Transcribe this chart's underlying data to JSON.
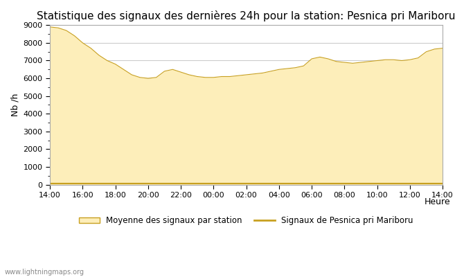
{
  "title": "Statistique des signaux des dernières 24h pour la station: Pesnica pri Mariboru",
  "xlabel": "Heure",
  "ylabel": "Nb /h",
  "ylim": [
    0,
    9000
  ],
  "yticks": [
    0,
    1000,
    2000,
    3000,
    4000,
    5000,
    6000,
    7000,
    8000,
    9000
  ],
  "xtick_labels": [
    "14:00",
    "16:00",
    "18:00",
    "20:00",
    "22:00",
    "00:00",
    "02:00",
    "04:00",
    "06:00",
    "08:00",
    "10:00",
    "12:00",
    "14:00"
  ],
  "fill_color": "#FDEEBA",
  "fill_edge_color": "#C8A020",
  "line_color": "#C8A020",
  "background_color": "#FFFFFF",
  "grid_color": "#CCCCCC",
  "watermark": "www.lightningmaps.org",
  "legend_fill_label": "Moyenne des signaux par station",
  "legend_line_label": "Signaux de Pesnica pri Mariboru",
  "title_fontsize": 11,
  "x_values": [
    0,
    1,
    2,
    3,
    4,
    5,
    6,
    7,
    8,
    9,
    10,
    11,
    12,
    13,
    14,
    15,
    16,
    17,
    18,
    19,
    20,
    21,
    22,
    23,
    24,
    25,
    26,
    27,
    28,
    29,
    30,
    31,
    32,
    33,
    34,
    35,
    36,
    37,
    38,
    39,
    40,
    41,
    42,
    43,
    44,
    45,
    46,
    47,
    48
  ],
  "y_fill": [
    8900,
    8850,
    8700,
    8400,
    8000,
    7700,
    7300,
    7000,
    6800,
    6500,
    6200,
    6050,
    6000,
    6050,
    6400,
    6500,
    6350,
    6200,
    6100,
    6050,
    6050,
    6100,
    6100,
    6150,
    6200,
    6250,
    6300,
    6400,
    6500,
    6550,
    6600,
    6700,
    7100,
    7200,
    7100,
    6950,
    6900,
    6850,
    6900,
    6950,
    7000,
    7050,
    7050,
    7000,
    7050,
    7150,
    7500,
    7650,
    7700
  ],
  "y_line": [
    50,
    50,
    50,
    50,
    50,
    50,
    50,
    50,
    50,
    50,
    50,
    50,
    50,
    50,
    50,
    50,
    50,
    50,
    50,
    50,
    50,
    50,
    50,
    50,
    50,
    50,
    50,
    50,
    50,
    50,
    50,
    50,
    50,
    50,
    50,
    50,
    50,
    50,
    50,
    50,
    50,
    50,
    50,
    50,
    50,
    50,
    50,
    50,
    50
  ]
}
